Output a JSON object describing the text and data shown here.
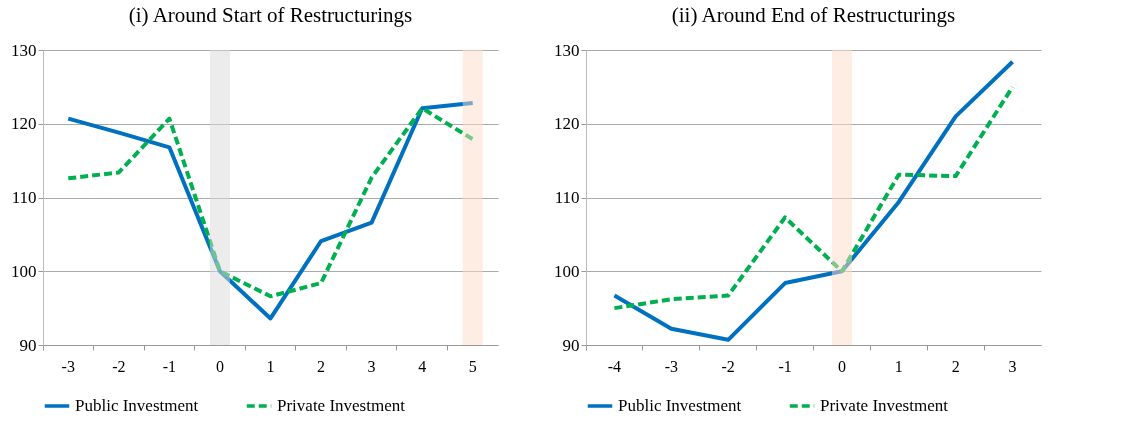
{
  "chart_data": [
    {
      "type": "line",
      "title": "(i) Around Start of Restructurings",
      "categories": [
        "-3",
        "-2",
        "-1",
        "0",
        "1",
        "2",
        "3",
        "4",
        "5"
      ],
      "ylim": [
        90,
        130
      ],
      "yticks": [
        90,
        100,
        110,
        120,
        130
      ],
      "grid": "y",
      "legend": "bottom",
      "series": [
        {
          "name": "Public Investment",
          "color": "#0070c0",
          "line_style": "solid",
          "values": [
            120.7,
            118.8,
            116.8,
            100,
            93.6,
            104.1,
            106.6,
            122.1,
            122.8
          ]
        },
        {
          "name": "Private Investment",
          "color": "#00b050",
          "line_style": "dashed",
          "values": [
            112.6,
            113.4,
            120.7,
            100,
            96.6,
            98.4,
            112.7,
            122.1,
            117.9
          ]
        }
      ],
      "ref_lines": [
        {
          "axis": "x",
          "value": "0",
          "color": "#d9d9d9"
        },
        {
          "axis": "x",
          "value": "5",
          "color": "#fbdcc7"
        }
      ]
    },
    {
      "type": "line",
      "title": "(ii) Around End of Restructurings",
      "categories": [
        "-4",
        "-3",
        "-2",
        "-1",
        "0",
        "1",
        "2",
        "3"
      ],
      "ylim": [
        90,
        130
      ],
      "yticks": [
        90,
        100,
        110,
        120,
        130
      ],
      "grid": "y",
      "legend": "bottom",
      "series": [
        {
          "name": "Public Investment",
          "color": "#0070c0",
          "line_style": "solid",
          "values": [
            96.7,
            92.2,
            90.7,
            98.4,
            100,
            109.4,
            121.0,
            128.4
          ]
        },
        {
          "name": "Private Investment",
          "color": "#00b050",
          "line_style": "dashed",
          "values": [
            95.0,
            96.2,
            96.7,
            107.3,
            100,
            113.1,
            112.9,
            125.0
          ]
        }
      ],
      "ref_lines": [
        {
          "axis": "x",
          "value": "0",
          "color": "#fbdcc7"
        }
      ]
    }
  ]
}
